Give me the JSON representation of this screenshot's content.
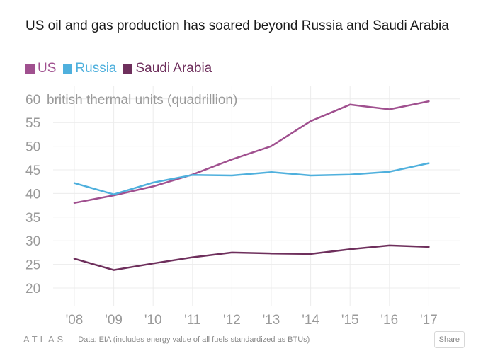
{
  "title": "US oil and gas production has soared beyond Russia and Saudi Arabia",
  "chart_data": {
    "type": "line",
    "title": "US oil and gas production has soared beyond Russia and Saudi Arabia",
    "ylabel": "british thermal units (quadrillion)",
    "xlabel": "",
    "categories": [
      "'08",
      "'09",
      "'10",
      "'11",
      "'12",
      "'13",
      "'14",
      "'15",
      "'16",
      "'17"
    ],
    "yticks": [
      20,
      25,
      30,
      35,
      40,
      45,
      50,
      55,
      60
    ],
    "ylim": [
      16,
      63
    ],
    "grid": true,
    "legend_position": "top-left",
    "series": [
      {
        "name": "US",
        "color": "#a0508f",
        "values": [
          38.0,
          39.6,
          41.5,
          44.0,
          47.2,
          50.0,
          55.3,
          58.8,
          57.8,
          59.5
        ]
      },
      {
        "name": "Russia",
        "color": "#4fb0dd",
        "values": [
          42.2,
          39.8,
          42.3,
          43.9,
          43.8,
          44.5,
          43.8,
          44.0,
          44.6,
          46.4
        ]
      },
      {
        "name": "Saudi Arabia",
        "color": "#6e2f5c",
        "values": [
          26.2,
          23.8,
          25.2,
          26.5,
          27.5,
          27.3,
          27.2,
          28.2,
          29.0,
          28.7
        ]
      }
    ]
  },
  "footer": {
    "logo": "ATLAS",
    "source": "Data:  EIA (includes energy value of all fuels standardized as BTUs)",
    "share_label": "Share"
  }
}
